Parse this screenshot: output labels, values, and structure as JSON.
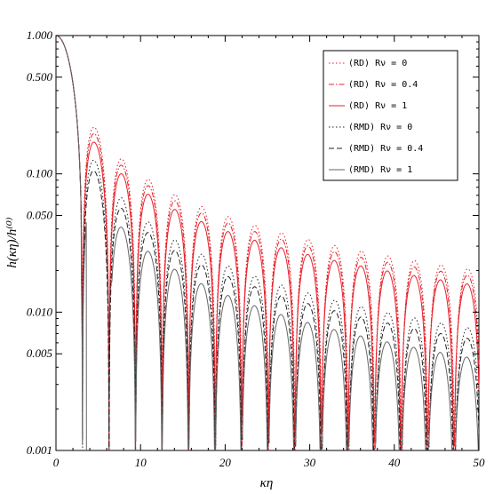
{
  "chart_data": {
    "type": "line",
    "xlabel": "κη",
    "ylabel": "h(κη)/h⁽⁰⁾",
    "xlim": [
      0,
      50
    ],
    "ylim": [
      0.001,
      1.0
    ],
    "yscale": "log",
    "x_ticks": [
      0,
      10,
      20,
      30,
      40,
      50
    ],
    "x_tick_labels": [
      "0",
      "10",
      "20",
      "30",
      "40",
      "50"
    ],
    "y_ticks": [
      0.001,
      0.005,
      0.01,
      0.05,
      0.1,
      0.5,
      1.0
    ],
    "y_tick_labels": [
      "0.001",
      "0.005",
      "0.010",
      "0.050",
      "0.100",
      "0.500",
      "1.000"
    ],
    "grid": false,
    "legend_position": "top-right",
    "series": [
      {
        "name": "(RD) Rν = 0",
        "color": "#e8202a",
        "dash": "dot",
        "amp": 1.0,
        "phase": 0.0
      },
      {
        "name": "(RD) Rν = 0.4",
        "color": "#e8202a",
        "dash": "dash-dot",
        "amp": 0.9,
        "phase": 0.04
      },
      {
        "name": "(RD) Rν = 1",
        "color": "#e8202a",
        "dash": "solid",
        "amp": 0.78,
        "phase": 0.09
      },
      {
        "name": "(RMD) Rν = 0",
        "color": "#222222",
        "dash": "dot",
        "amp": 0.62,
        "phase": 0.0,
        "decay": 1.18
      },
      {
        "name": "(RMD) Rν = 0.4",
        "color": "#222222",
        "dash": "dash",
        "amp": 0.52,
        "phase": 0.05,
        "decay": 1.18
      },
      {
        "name": "(RMD) Rν = 1",
        "color": "#666666",
        "dash": "solid",
        "amp": 0.38,
        "phase": 0.12,
        "decay": 1.18,
        "first_zero": 3.6
      }
    ]
  }
}
